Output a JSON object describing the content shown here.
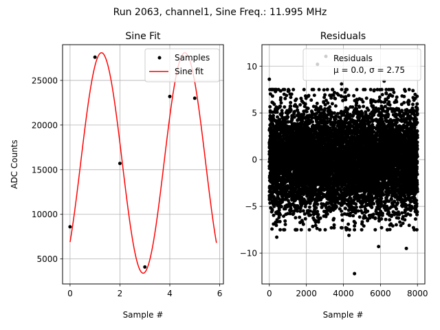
{
  "suptitle": "Run 2063, channel1, Sine Freq.: 11.995 MHz",
  "chart_data": [
    {
      "type": "line",
      "title": "Sine Fit",
      "xlabel": "Sample #",
      "ylabel": "ADC Counts",
      "xlim": [
        -0.3,
        6.15
      ],
      "ylim": [
        2200,
        29000
      ],
      "grid": true,
      "xticks": [
        0,
        2,
        4,
        6
      ],
      "yticks": [
        5000,
        10000,
        15000,
        20000,
        25000
      ],
      "legend_location": "top-right",
      "series": [
        {
          "name": "Samples",
          "kind": "scatter",
          "color": "#000000",
          "x": [
            0,
            1,
            2,
            3,
            4,
            5
          ],
          "y": [
            8600,
            27600,
            15700,
            4100,
            23200,
            23000
          ]
        },
        {
          "name": "Sine fit",
          "kind": "line",
          "color": "#ff0000",
          "x_range": [
            0,
            5.87
          ],
          "model": {
            "offset": 15750,
            "amplitude": 12350,
            "freq_per_sample": 0.2992,
            "phase_rad": -0.8
          }
        }
      ]
    },
    {
      "type": "scatter",
      "title": "Residuals",
      "xlabel": "Sample #",
      "ylabel": "",
      "xlim": [
        -400,
        8400
      ],
      "ylim": [
        -13.3,
        12.3
      ],
      "grid": true,
      "xticks": [
        0,
        2000,
        4000,
        6000,
        8000
      ],
      "yticks": [
        -10,
        -5,
        0,
        5,
        10
      ],
      "legend_location": "top-right",
      "series": [
        {
          "name": "Residuals",
          "stats_label": "μ = 0.0, σ = 2.75",
          "color": "#000000",
          "mean": 0.0,
          "std": 2.75,
          "n_points": 8000,
          "x_range": [
            0,
            8000
          ],
          "outliers": [
            {
              "x": 4600,
              "y": -12.2
            },
            {
              "x": 2600,
              "y": 10.2
            },
            {
              "x": 6200,
              "y": 8.4
            },
            {
              "x": 0,
              "y": 8.6
            },
            {
              "x": 400,
              "y": -8.3
            },
            {
              "x": 5900,
              "y": -9.3
            },
            {
              "x": 7400,
              "y": -9.5
            },
            {
              "x": 3900,
              "y": 8.1
            },
            {
              "x": 4300,
              "y": -8.1
            }
          ]
        }
      ]
    }
  ]
}
